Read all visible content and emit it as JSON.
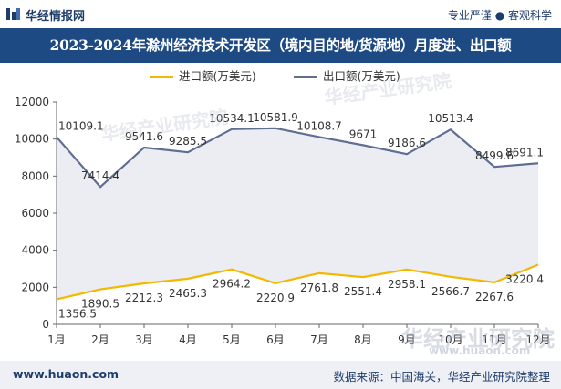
{
  "header": {
    "brand": "华经情报网",
    "tagline": "专业严谨 ● 客观科学"
  },
  "watermarks": [
    "华经产业研究院",
    "www.huaon.com"
  ],
  "chart_data": {
    "type": "line",
    "title": "2023-2024年滁州经济技术开发区（境内目的地/货源地）月度进、出口额",
    "categories": [
      "1月",
      "2月",
      "3月",
      "4月",
      "5月",
      "6月",
      "7月",
      "8月",
      "9月",
      "10月",
      "11月",
      "12月"
    ],
    "series": [
      {
        "name": "进口额(万美元)",
        "color": "#f5b800",
        "values": [
          1356.5,
          1890.5,
          2212.3,
          2465.3,
          2964.2,
          2220.9,
          2761.8,
          2551.4,
          2958.1,
          2566.7,
          2267.6,
          3220.4
        ]
      },
      {
        "name": "出口额(万美元)",
        "color": "#5f6e91",
        "values": [
          10109.1,
          7414.4,
          9541.6,
          9285.5,
          10534.1,
          10581.9,
          10108.7,
          9671,
          9186.6,
          10513.4,
          8499.6,
          8691.1
        ]
      }
    ],
    "ylim": [
      0,
      12000
    ],
    "yticks": [
      0,
      2000,
      4000,
      6000,
      8000,
      10000,
      12000
    ],
    "legend": "top-center",
    "grid": false
  },
  "footer": {
    "site": "www.huaon.com",
    "source": "数据来源：中国海关，华经产业研究院整理"
  }
}
